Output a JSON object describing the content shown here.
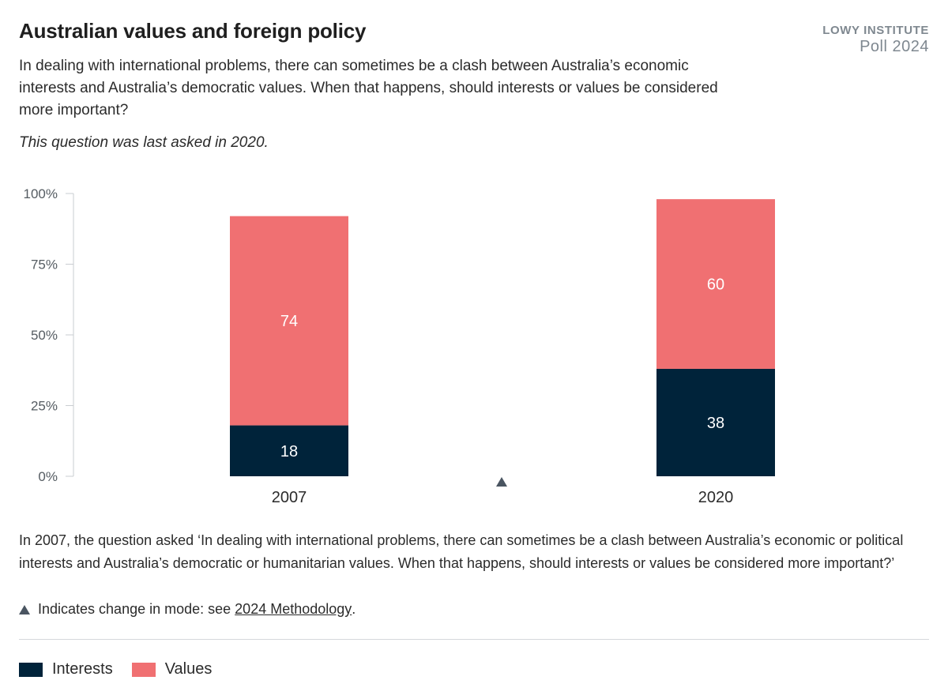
{
  "header": {
    "title": "Australian values and foreign policy",
    "brand_line1": "LOWY INSTITUTE",
    "brand_line2": "Poll 2024",
    "question": "In dealing with international problems, there can sometimes be a clash between Australia’s economic interests and Australia’s democratic values. When that happens, should interests or values be considered more important?",
    "last_asked": "This question was last asked in 2020."
  },
  "chart_data": {
    "type": "bar",
    "stacked": true,
    "categories": [
      "2007",
      "2020"
    ],
    "series": [
      {
        "name": "Interests",
        "color": "#00233a",
        "values": [
          18,
          38
        ]
      },
      {
        "name": "Values",
        "color": "#f07072",
        "values": [
          74,
          60
        ]
      }
    ],
    "ylim": [
      0,
      100
    ],
    "yticks": [
      "0%",
      "25%",
      "50%",
      "75%",
      "100%"
    ],
    "ytick_values": [
      0,
      25,
      50,
      75,
      100
    ],
    "mode_change_marker": {
      "between": [
        "2007",
        "2020"
      ],
      "icon": "triangle-up-icon"
    },
    "grid": false,
    "legend_position": "bottom-left"
  },
  "footer": {
    "note": "In 2007, the question asked ‘In dealing with international problems, there can sometimes be a clash between Australia’s economic or political interests and Australia’s democratic or humanitarian values. When that happens, should interests or values be considered more important?’",
    "mode_note_prefix": "Indicates change in mode: see",
    "mode_note_link": "2024 Methodology",
    "mode_note_suffix": "."
  },
  "legend": {
    "items": [
      {
        "label": "Interests",
        "color": "#00233a"
      },
      {
        "label": "Values",
        "color": "#f07072"
      }
    ]
  }
}
